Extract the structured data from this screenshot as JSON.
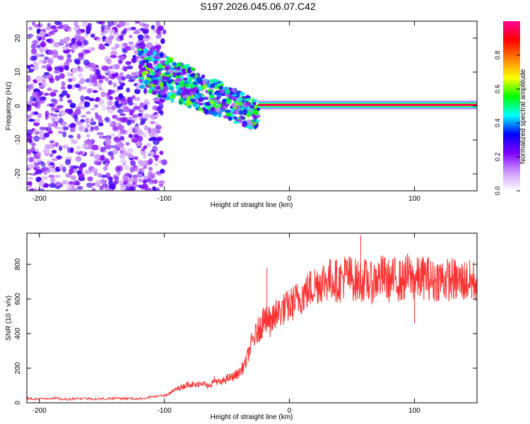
{
  "figure_title": "S197.2026.045.06.07.C42",
  "chart_data": [
    {
      "type": "heatmap",
      "title": "",
      "xlabel": "Height of straight line (km)",
      "ylabel": "Frequency (Hz)",
      "xlim": [
        -210,
        150
      ],
      "ylim": [
        -25,
        25
      ],
      "xticks": [
        -200,
        -100,
        0,
        100
      ],
      "yticks": [
        -20,
        -10,
        0,
        10,
        20
      ],
      "colorbar": {
        "label": "Normalized spectral amplitude",
        "range": [
          0,
          1
        ],
        "ticks": [
          0.0,
          0.2,
          0.4,
          0.6,
          0.8
        ],
        "colors": [
          "#ffffff",
          "#cc99ff",
          "#8000ff",
          "#0000ff",
          "#00ffff",
          "#00ff00",
          "#ffff00",
          "#ff8000",
          "#ff0000",
          "#ff0099"
        ]
      },
      "features": [
        {
          "name": "scattered noise",
          "x_range": [
            -210,
            -100
          ],
          "frequency_range": [
            -25,
            25
          ],
          "amplitude": 0.1
        },
        {
          "name": "descending band",
          "x_range": [
            -120,
            -25
          ],
          "frequency_start": 12,
          "frequency_end": -3,
          "amplitude": 0.3
        },
        {
          "name": "carrier line",
          "x_range": [
            -25,
            150
          ],
          "frequency": 0.3,
          "amplitude": 0.95
        }
      ]
    },
    {
      "type": "line",
      "title": "",
      "xlabel": "Height of straight line (km)",
      "ylabel": "SNR (10 * v/v)",
      "xlim": [
        -210,
        150
      ],
      "ylim": [
        0,
        980
      ],
      "xticks": [
        -200,
        -100,
        0,
        100
      ],
      "yticks": [
        0,
        200,
        400,
        600,
        800
      ],
      "series": [
        {
          "name": "SNR",
          "color": "#ff3333",
          "x": [
            -210,
            -200,
            -190,
            -180,
            -170,
            -160,
            -150,
            -140,
            -130,
            -120,
            -110,
            -100,
            -95,
            -90,
            -85,
            -80,
            -75,
            -70,
            -65,
            -60,
            -55,
            -50,
            -45,
            -40,
            -35,
            -30,
            -25,
            -22,
            -20,
            -17,
            -15,
            -12,
            -10,
            -5,
            0,
            5,
            10,
            15,
            20,
            25,
            30,
            35,
            40,
            45,
            50,
            55,
            60,
            65,
            70,
            75,
            80,
            85,
            90,
            95,
            100,
            105,
            110,
            115,
            120,
            125,
            130,
            135,
            140,
            145,
            150
          ],
          "y": [
            25,
            22,
            28,
            20,
            26,
            24,
            22,
            27,
            25,
            23,
            35,
            40,
            60,
            80,
            95,
            110,
            100,
            120,
            90,
            130,
            115,
            140,
            150,
            175,
            230,
            350,
            420,
            450,
            480,
            500,
            440,
            510,
            520,
            540,
            560,
            590,
            620,
            650,
            680,
            700,
            710,
            715,
            700,
            740,
            720,
            700,
            710,
            690,
            715,
            730,
            700,
            720,
            700,
            740,
            710,
            720,
            730,
            700,
            720,
            710,
            715,
            700,
            705,
            700,
            700
          ]
        }
      ],
      "annotations": [
        {
          "x": -18,
          "y": 780,
          "text": "spike"
        },
        {
          "x": 57,
          "y": 970,
          "text": "peak"
        },
        {
          "x": 100,
          "y": 460,
          "text": "dip"
        }
      ]
    }
  ]
}
